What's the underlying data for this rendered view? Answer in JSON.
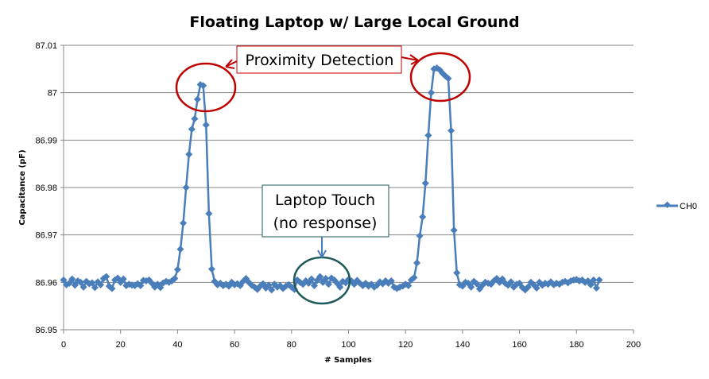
{
  "chart_data": {
    "type": "line",
    "title": "Floating Laptop w/ Large Local Ground",
    "xlabel": "# Samples",
    "ylabel": "Capacitance  (pF)",
    "xlim": [
      0,
      200
    ],
    "ylim": [
      86.95,
      87.01
    ],
    "xticks": [
      "0",
      "20",
      "40",
      "60",
      "80",
      "100",
      "120",
      "140",
      "160",
      "180",
      "200"
    ],
    "yticks": [
      "86.95",
      "86.96",
      "86.97",
      "86.98",
      "86.99",
      "87",
      "87.01"
    ],
    "grid": "horizontal",
    "legend_position": "right",
    "series": [
      {
        "name": "CH0",
        "color": "#4a7ebb",
        "values": [
          86.9605,
          86.9595,
          86.9598,
          86.9607,
          86.9594,
          86.9603,
          86.96,
          86.959,
          86.9602,
          86.9597,
          86.9599,
          86.9589,
          86.9601,
          86.9595,
          86.9608,
          86.9612,
          86.9592,
          86.9587,
          86.9605,
          86.9609,
          86.96,
          86.9607,
          86.9593,
          86.9596,
          86.9594,
          86.9593,
          86.9597,
          86.9593,
          86.9604,
          86.9603,
          86.9605,
          86.9598,
          86.959,
          86.9596,
          86.9589,
          86.9599,
          86.9602,
          86.96,
          86.9603,
          86.9608,
          86.9627,
          86.967,
          86.9725,
          86.98,
          86.987,
          86.9923,
          86.9945,
          86.9986,
          87.0017,
          87.0015,
          86.9932,
          86.9745,
          86.9628,
          86.9602,
          86.9595,
          86.9598,
          86.9593,
          86.9596,
          86.9592,
          86.96,
          86.9595,
          86.9597,
          86.9593,
          86.9602,
          86.9608,
          86.96,
          86.9594,
          86.959,
          86.9585,
          86.9592,
          86.9597,
          86.9588,
          86.9594,
          86.9584,
          86.9596,
          86.959,
          86.9593,
          86.9587,
          86.9592,
          86.9595,
          86.959,
          86.9585,
          86.9605,
          86.96,
          86.9596,
          86.9603,
          86.9598,
          86.9607,
          86.9593,
          86.9604,
          86.9612,
          86.96,
          86.9608,
          86.9596,
          86.9609,
          86.9605,
          86.9598,
          86.959,
          86.9602,
          86.9599,
          86.9606,
          86.9603,
          86.9596,
          86.9604,
          86.9598,
          86.9593,
          86.9598,
          86.9592,
          86.9596,
          86.959,
          86.9594,
          86.9601,
          86.9597,
          86.9603,
          86.9598,
          86.9603,
          86.959,
          86.9587,
          86.959,
          86.9592,
          86.9596,
          86.9593,
          86.9605,
          86.961,
          86.9641,
          86.9698,
          86.9738,
          86.9809,
          86.991,
          87.0,
          87.005,
          87.0052,
          87.0048,
          87.0041,
          87.0035,
          87.003,
          86.992,
          86.971,
          86.962,
          86.9595,
          86.9592,
          86.96,
          86.9598,
          86.959,
          86.9602,
          86.9597,
          86.9586,
          86.9594,
          86.96,
          86.9598,
          86.9596,
          86.9603,
          86.9608,
          86.96,
          86.9607,
          86.9598,
          86.9594,
          86.9601,
          86.959,
          86.9596,
          86.9598,
          86.9589,
          86.9584,
          86.959,
          86.96,
          86.9595,
          86.9588,
          86.96,
          86.9594,
          86.9598,
          86.9596,
          86.9601,
          86.9595,
          86.9598,
          86.9596,
          86.96,
          86.9602,
          86.9599,
          86.9603,
          86.9605,
          86.9606,
          86.9603,
          86.9605,
          86.96,
          86.9603,
          86.9595,
          86.9605,
          86.9588,
          86.9605
        ]
      }
    ],
    "annotations": [
      {
        "text": "Proximity Detection",
        "color": "#c00000"
      },
      {
        "text_line1": "Laptop Touch",
        "text_line2": "(no response)",
        "color": "#1f5a5a"
      }
    ]
  }
}
